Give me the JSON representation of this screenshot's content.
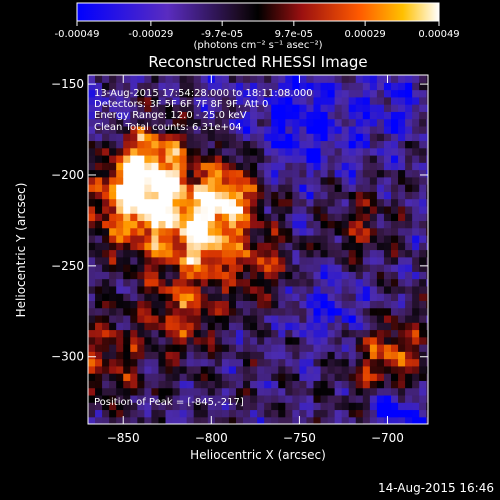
{
  "colorbar": {
    "tick_labels": [
      "-0.00049",
      "-0.00029",
      "-9.7e-05",
      "9.7e-05",
      "0.00029",
      "0.00049"
    ],
    "tick_values": [
      -0.00049,
      -0.00029,
      -9.7e-05,
      9.7e-05,
      0.00029,
      0.00049
    ],
    "range": [
      -0.00049,
      0.00049
    ],
    "units_label": "(photons cm⁻² s⁻¹ asec⁻²)"
  },
  "chart_data": {
    "type": "heatmap",
    "title": "Reconstructed RHESSI Image",
    "xlabel": "Heliocentric X (arcsec)",
    "ylabel": "Heliocentric Y (arcsec)",
    "xlim": [
      -870,
      -677
    ],
    "ylim": [
      -337,
      -145
    ],
    "x_ticks": [
      -850,
      -800,
      -750,
      -700
    ],
    "y_ticks": [
      -300,
      -250,
      -200,
      -150
    ],
    "colormap": [
      "#0000ff",
      "#4b2bb0",
      "#3a1a4a",
      "#000000",
      "#8a1010",
      "#e03a00",
      "#ff9a00",
      "#ffffff"
    ],
    "annotations": [
      "13-Aug-2015 17:54:28.000 to 18:11:08.000",
      "Detectors: 3F 5F 6F 7F 8F 9F, Att 0",
      "Energy Range: 12.0 - 25.0 keV",
      "Clean     Total counts: 6.31e+04"
    ],
    "peak_label": "Position of Peak = [-845,-217]",
    "peak": [
      -845,
      -217
    ],
    "bright_regions": [
      {
        "x": -842,
        "y": -215,
        "level": 0.95,
        "spread": 22
      },
      {
        "x": -835,
        "y": -190,
        "level": 0.7,
        "spread": 18
      },
      {
        "x": -805,
        "y": -232,
        "level": 0.85,
        "spread": 20
      },
      {
        "x": -790,
        "y": -208,
        "level": 0.7,
        "spread": 16
      },
      {
        "x": -815,
        "y": -275,
        "level": 0.55,
        "spread": 18
      },
      {
        "x": -770,
        "y": -250,
        "level": 0.45,
        "spread": 16
      },
      {
        "x": -700,
        "y": -300,
        "level": 0.65,
        "spread": 20
      },
      {
        "x": -715,
        "y": -230,
        "level": 0.4,
        "spread": 15
      },
      {
        "x": -860,
        "y": -300,
        "level": 0.45,
        "spread": 20
      }
    ],
    "dim_regions": [
      {
        "x": -750,
        "y": -170,
        "level": -0.45,
        "spread": 25
      },
      {
        "x": -730,
        "y": -275,
        "level": -0.35,
        "spread": 22
      },
      {
        "x": -695,
        "y": -330,
        "level": -0.7,
        "spread": 12
      },
      {
        "x": -860,
        "y": -170,
        "level": -0.25,
        "spread": 18
      },
      {
        "x": -700,
        "y": -160,
        "level": -0.3,
        "spread": 20
      }
    ],
    "pixel_size_arcsec": 4
  },
  "timestamp": "14-Aug-2015 16:46"
}
